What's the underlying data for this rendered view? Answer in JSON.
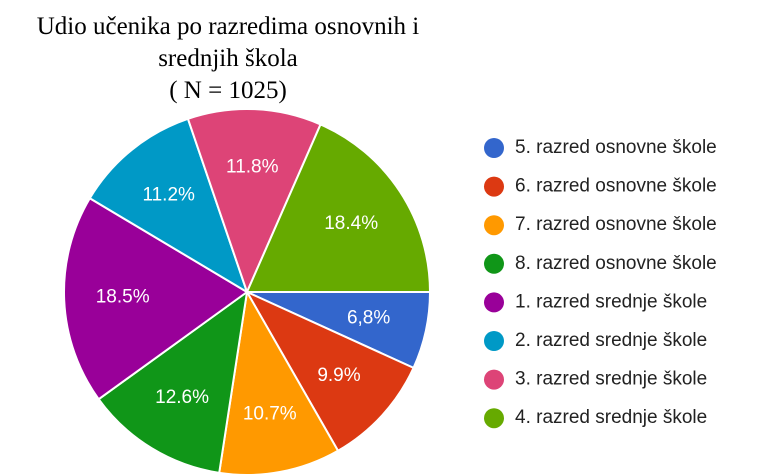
{
  "chart_data": {
    "type": "pie",
    "title": [
      "Udio učenika po razredima osnovnih i",
      "srednjih škola",
      "( N = 1025)"
    ],
    "categories": [
      "5. razred osnovne škole",
      "6. razred osnovne škole",
      "7. razred osnovne škole",
      "8. razred osnovne škole",
      "1. razred srednje škole",
      "2. razred srednje škole",
      "3. razred srednje škole",
      "4. razred srednje škole"
    ],
    "values": [
      6.8,
      9.9,
      10.7,
      12.6,
      18.5,
      11.2,
      11.8,
      18.4
    ],
    "value_labels": [
      "6,8%",
      "9.9%",
      "10.7%",
      "12.6%",
      "18.5%",
      "11.2%",
      "11.8%",
      "18.4%"
    ],
    "colors": [
      "#3366cc",
      "#dc3912",
      "#ff9900",
      "#109618",
      "#990099",
      "#0099c6",
      "#dd4477",
      "#66aa00"
    ],
    "legend": "right"
  }
}
